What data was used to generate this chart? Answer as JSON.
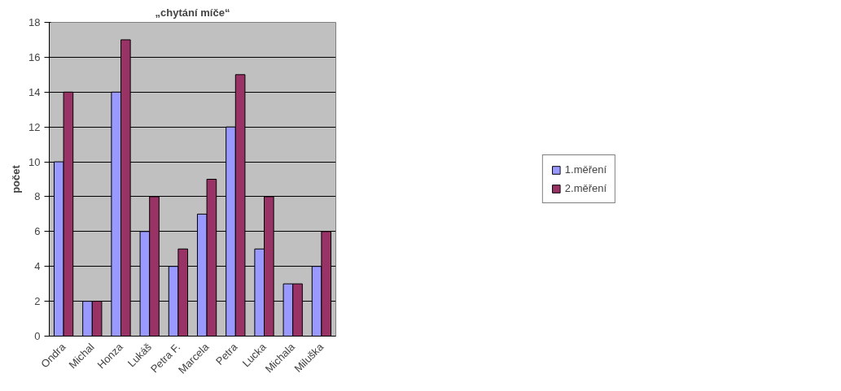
{
  "chart_data": {
    "type": "bar",
    "title": "„chytání míče“",
    "ylabel": "počet",
    "categories": [
      "Ondra",
      "Michal",
      "Honza",
      "Lukáš",
      "Petra F.",
      "Marcela",
      "Petra",
      "Lucka",
      "Michala",
      "Miluška"
    ],
    "series": [
      {
        "name": "1.měření",
        "color": "#9999ff",
        "values": [
          10,
          2,
          14,
          6,
          4,
          7,
          12,
          5,
          3,
          4
        ]
      },
      {
        "name": "2.měření",
        "color": "#993366",
        "values": [
          14,
          2,
          17,
          8,
          5,
          9,
          15,
          8,
          3,
          6
        ]
      }
    ],
    "ylim": [
      0,
      18
    ],
    "yticks": [
      0,
      2,
      4,
      6,
      8,
      10,
      12,
      14,
      16,
      18
    ],
    "grid": "y",
    "legend": "right"
  }
}
